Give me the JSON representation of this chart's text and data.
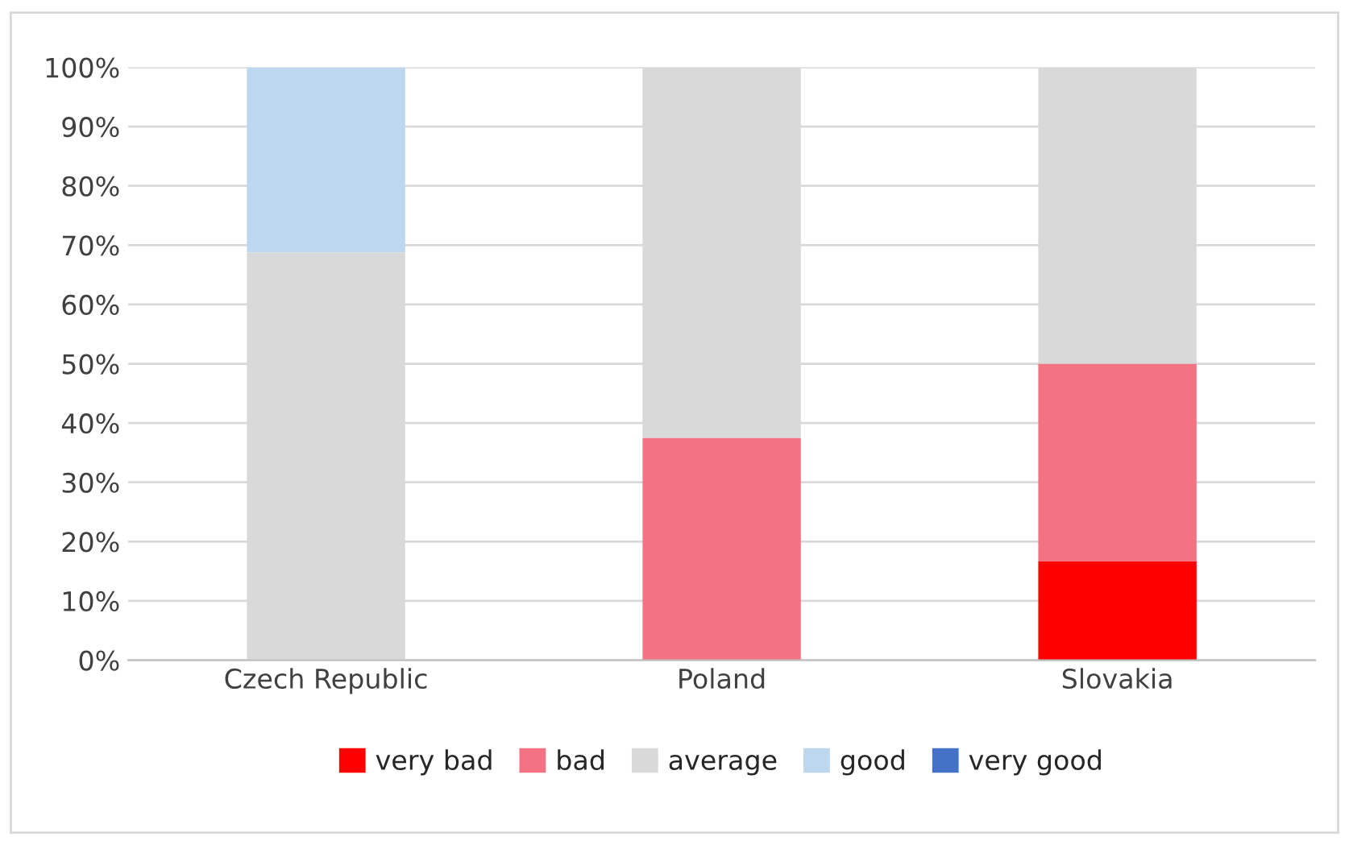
{
  "chart_data": {
    "type": "bar",
    "stacked": true,
    "categories": [
      "Czech Republic",
      "Poland",
      "Slovakia"
    ],
    "series": [
      {
        "name": "very bad",
        "color": "#ff0000",
        "values": [
          0,
          0,
          16.7
        ]
      },
      {
        "name": "bad",
        "color": "#f37383",
        "values": [
          0,
          37.5,
          33.3
        ]
      },
      {
        "name": "average",
        "color": "#d9d9d9",
        "values": [
          68.8,
          62.5,
          50
        ]
      },
      {
        "name": "good",
        "color": "#bdd7ee",
        "values": [
          31.2,
          0,
          0
        ]
      },
      {
        "name": "very good",
        "color": "#4472c4",
        "values": [
          0,
          0,
          0
        ]
      }
    ],
    "ylim": [
      0,
      100
    ],
    "yticks": [
      {
        "value": 0,
        "label": "0%"
      },
      {
        "value": 10,
        "label": "10%"
      },
      {
        "value": 20,
        "label": "20%"
      },
      {
        "value": 30,
        "label": "30%"
      },
      {
        "value": 40,
        "label": "40%"
      },
      {
        "value": 50,
        "label": "50%"
      },
      {
        "value": 60,
        "label": "60%"
      },
      {
        "value": 70,
        "label": "70%"
      },
      {
        "value": 80,
        "label": "80%"
      },
      {
        "value": 90,
        "label": "90%"
      },
      {
        "value": 100,
        "label": "100%"
      }
    ],
    "grid": "y",
    "legend": "bottom"
  }
}
